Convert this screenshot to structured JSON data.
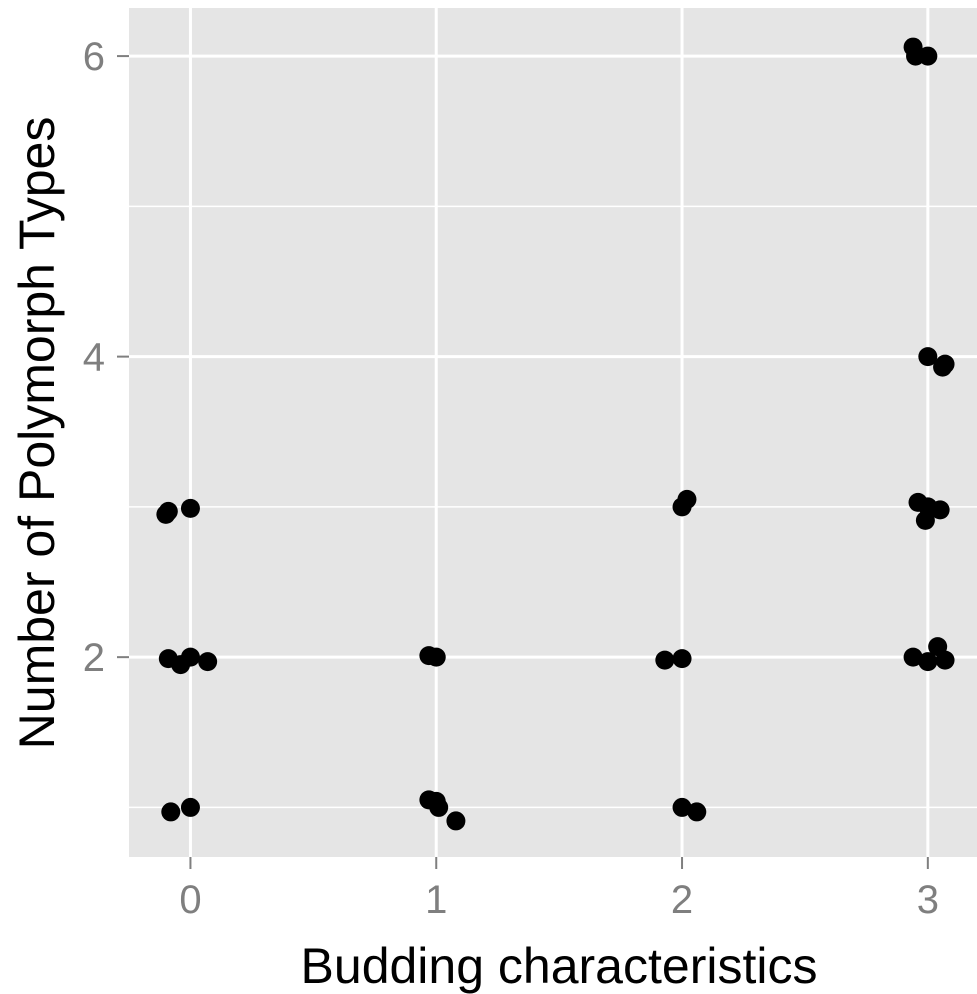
{
  "chart_data": {
    "type": "scatter",
    "title": "",
    "xlabel": "Budding characteristics",
    "ylabel": "Number of Polymorph Types",
    "x_ticks": [
      "0",
      "1",
      "2",
      "3"
    ],
    "y_ticks": [
      "2",
      "4",
      "6"
    ],
    "xlim": [
      -0.25,
      3.2
    ],
    "ylim": [
      0.67,
      6.32
    ],
    "grid": true,
    "legend": "none",
    "colors": {
      "panel": "#e5e5e5",
      "grid": "#ffffff",
      "point": "#000000",
      "tick_text": "#7f7f7f"
    },
    "points": [
      {
        "x": -0.09,
        "y": 2.97
      },
      {
        "x": -0.1,
        "y": 2.95
      },
      {
        "x": 0.0,
        "y": 2.99
      },
      {
        "x": -0.09,
        "y": 1.99
      },
      {
        "x": -0.04,
        "y": 1.95
      },
      {
        "x": 0.0,
        "y": 2.0
      },
      {
        "x": 0.07,
        "y": 1.97
      },
      {
        "x": -0.08,
        "y": 0.97
      },
      {
        "x": 0.0,
        "y": 1.0
      },
      {
        "x": 0.97,
        "y": 2.01
      },
      {
        "x": 1.0,
        "y": 2.0
      },
      {
        "x": 0.97,
        "y": 1.05
      },
      {
        "x": 1.0,
        "y": 1.04
      },
      {
        "x": 1.01,
        "y": 1.0
      },
      {
        "x": 1.08,
        "y": 0.91
      },
      {
        "x": 2.0,
        "y": 3.0
      },
      {
        "x": 2.02,
        "y": 3.05
      },
      {
        "x": 1.93,
        "y": 1.98
      },
      {
        "x": 2.0,
        "y": 1.99
      },
      {
        "x": 2.0,
        "y": 1.0
      },
      {
        "x": 2.06,
        "y": 0.97
      },
      {
        "x": 2.94,
        "y": 6.06
      },
      {
        "x": 2.95,
        "y": 6.0
      },
      {
        "x": 3.0,
        "y": 6.0
      },
      {
        "x": 3.0,
        "y": 4.0
      },
      {
        "x": 3.06,
        "y": 3.93
      },
      {
        "x": 3.07,
        "y": 3.95
      },
      {
        "x": 2.96,
        "y": 3.03
      },
      {
        "x": 2.99,
        "y": 2.91
      },
      {
        "x": 3.0,
        "y": 3.0
      },
      {
        "x": 3.05,
        "y": 2.98
      },
      {
        "x": 2.94,
        "y": 2.0
      },
      {
        "x": 3.0,
        "y": 1.97
      },
      {
        "x": 3.04,
        "y": 2.07
      },
      {
        "x": 3.07,
        "y": 1.98
      }
    ]
  }
}
